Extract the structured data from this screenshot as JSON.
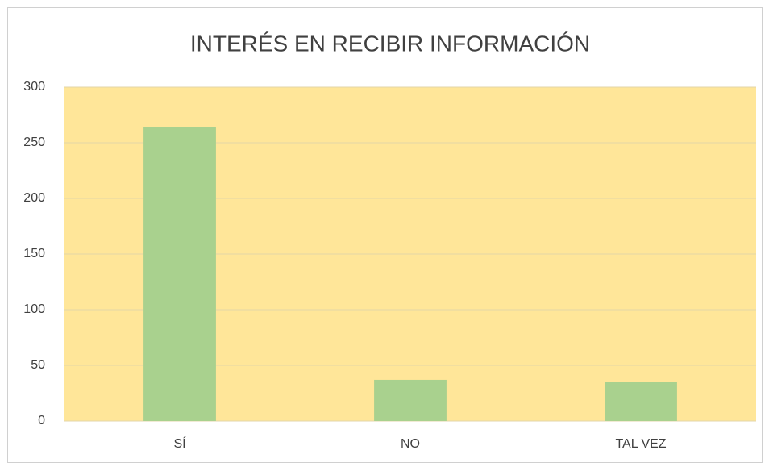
{
  "chart_data": {
    "type": "bar",
    "title": "INTERÉS EN RECIBIR INFORMACIÓN",
    "categories": [
      "SÍ",
      "NO",
      "TAL VEZ"
    ],
    "values": [
      264,
      37,
      35
    ],
    "color": "#a9d18e",
    "plot_background": "#ffe699",
    "ylim": [
      0,
      300
    ],
    "yticks": [
      0,
      50,
      100,
      150,
      200,
      250,
      300
    ],
    "grid": true
  }
}
